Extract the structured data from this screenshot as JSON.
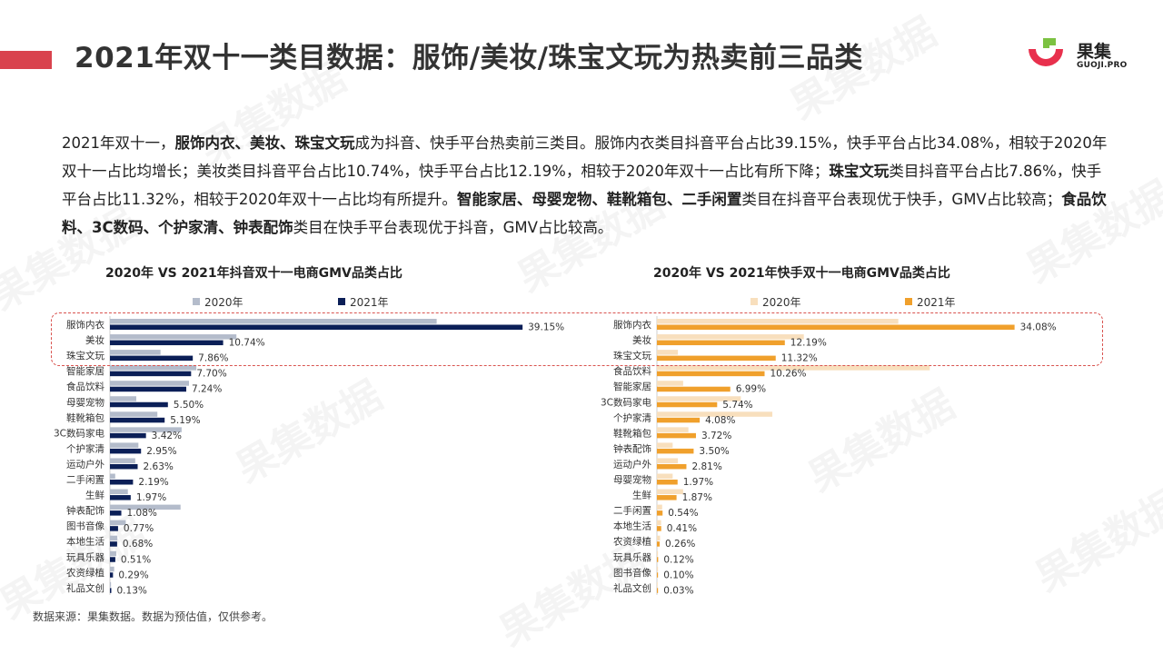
{
  "header": {
    "title": "2021年双十一类目数据：服饰/美妆/珠宝文玩为热卖前三品类"
  },
  "logo": {
    "name_cn": "果集",
    "name_en": "GUOJI.PRO"
  },
  "colors": {
    "accent_red": "#d9434e",
    "douyin_2020": "#b4bccb",
    "douyin_2021": "#0b1f57",
    "kuaishou_2020": "#f8dfbd",
    "kuaishou_2021": "#f0a02c"
  },
  "summary": {
    "s1": "2021年双十一，",
    "b1": "服饰内衣、美妆、珠宝文玩",
    "s2": "成为抖音、快手平台热卖前三类目。服饰内衣类目抖音平台占比39.15%，快手平台占比34.08%，相较于2020年双十一占比均增长；美妆类目抖音平台占比10.74%，快手平台占比12.19%，相较于2020年双十一占比有所下降；",
    "b2": "珠宝文玩",
    "s3": "类目抖音平台占比7.86%，快手平台占比11.32%，相较于2020年双十一占比均有所提升。",
    "b3": "智能家居、母婴宠物、鞋靴箱包、二手闲置",
    "s4": "类目在抖音平台表现优于快手，GMV占比较高；",
    "b4": "食品饮料、3C数码、个护家清、钟表配饰",
    "s5": "类目在快手平台表现优于抖音，GMV占比较高。"
  },
  "source_note": "数据来源：果集数据。数据为预估值，仅供参考。",
  "watermark_text": "果集数据",
  "chart_data": [
    {
      "type": "bar",
      "orientation": "horizontal",
      "title": "2020年 VS 2021年抖音双十一电商GMV品类占比",
      "legend_position": "top",
      "categories": [
        "服饰内衣",
        "美妆",
        "珠宝文玩",
        "智能家居",
        "食品饮料",
        "母婴宠物",
        "鞋靴箱包",
        "3C数码家电",
        "个护家清",
        "运动户外",
        "二手闲置",
        "生鲜",
        "钟表配饰",
        "图书音像",
        "本地生活",
        "玩具乐器",
        "农资绿植",
        "礼品文创"
      ],
      "series": [
        {
          "name": "2020年",
          "color": "#b4bccb",
          "values": [
            31.0,
            12.0,
            4.8,
            8.2,
            7.5,
            2.5,
            4.5,
            6.8,
            2.7,
            2.4,
            0.5,
            1.7,
            6.7,
            1.5,
            0.7,
            0.6,
            0.4,
            0.1
          ]
        },
        {
          "name": "2021年",
          "color": "#0b1f57",
          "values": [
            39.15,
            10.74,
            7.86,
            7.7,
            7.24,
            5.5,
            5.19,
            3.42,
            2.95,
            2.63,
            2.19,
            1.97,
            1.08,
            0.77,
            0.68,
            0.51,
            0.29,
            0.13
          ]
        }
      ],
      "data_labels": [
        "39.15%",
        "10.74%",
        "7.86%",
        "7.70%",
        "7.24%",
        "5.50%",
        "5.19%",
        "3.42%",
        "2.95%",
        "2.63%",
        "2.19%",
        "1.97%",
        "1.08%",
        "0.77%",
        "0.68%",
        "0.51%",
        "0.29%",
        "0.13%"
      ],
      "grid": false
    },
    {
      "type": "bar",
      "orientation": "horizontal",
      "title": "2020年 VS 2021年快手双十一电商GMV品类占比",
      "legend_position": "top",
      "categories": [
        "服饰内衣",
        "美妆",
        "珠宝文玩",
        "食品饮料",
        "智能家居",
        "3C数码家电",
        "个护家清",
        "鞋靴箱包",
        "钟表配饰",
        "运动户外",
        "母婴宠物",
        "生鲜",
        "二手闲置",
        "本地生活",
        "农资绿植",
        "玩具乐器",
        "图书音像",
        "礼品文创"
      ],
      "series": [
        {
          "name": "2020年",
          "color": "#f8dfbd",
          "values": [
            23.0,
            14.0,
            2.0,
            26.0,
            2.5,
            8.0,
            11.0,
            3.0,
            1.5,
            2.0,
            1.5,
            2.5,
            0.5,
            0.4,
            0.3,
            0.1,
            0.1,
            0.05
          ]
        },
        {
          "name": "2021年",
          "color": "#f0a02c",
          "values": [
            34.08,
            12.19,
            11.32,
            10.26,
            6.99,
            5.74,
            4.08,
            3.72,
            3.5,
            2.81,
            1.97,
            1.87,
            0.54,
            0.41,
            0.26,
            0.12,
            0.1,
            0.03
          ]
        }
      ],
      "data_labels": [
        "34.08%",
        "12.19%",
        "11.32%",
        "10.26%",
        "6.99%",
        "5.74%",
        "4.08%",
        "3.72%",
        "3.50%",
        "2.81%",
        "1.97%",
        "1.87%",
        "0.54%",
        "0.41%",
        "0.26%",
        "0.12%",
        "0.10%",
        "0.03%"
      ],
      "grid": false
    }
  ]
}
